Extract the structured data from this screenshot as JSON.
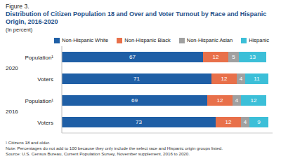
{
  "chart_data": {
    "type": "bar",
    "orientation": "horizontal",
    "stacked": true,
    "data_labels": true,
    "tick_labels": "y",
    "grid": false,
    "legend": "top",
    "figure_label": "Figure 3.",
    "title": "Distribution of Citizen Population 18 and Over and Voter Turnout by Race and Hispanic Origin, 2016-2020",
    "subtitle": "(In percent)",
    "categories": [
      "Population¹",
      "Voters",
      "Population¹",
      "Voters"
    ],
    "groups": [
      {
        "label": "2020",
        "size": 2
      },
      {
        "label": "2016",
        "size": 2
      }
    ],
    "series": [
      {
        "name": "Non-Hispanic White",
        "color": "#1f5fa6",
        "values": [
          67,
          71,
          69,
          73
        ]
      },
      {
        "name": "Non-Hispanic Black",
        "color": "#e8704a",
        "values": [
          12,
          12,
          12,
          12
        ]
      },
      {
        "name": "Non-Hispanic Asian",
        "color": "#a0a0a0",
        "values": [
          5,
          4,
          4,
          4
        ]
      },
      {
        "name": "Hispanic",
        "color": "#3cbfd8",
        "values": [
          13,
          11,
          12,
          9
        ]
      }
    ],
    "xlim": [
      0,
      100
    ],
    "xticks": [],
    "notes": [
      "¹ Citizens 18 and older.",
      "Note: Percentages do not add to 100 because they only include the select race and Hispanic origin groups listed.",
      "Source: U.S. Census Bureau, Current Population Survey, November supplement, 2016 to 2020."
    ]
  }
}
